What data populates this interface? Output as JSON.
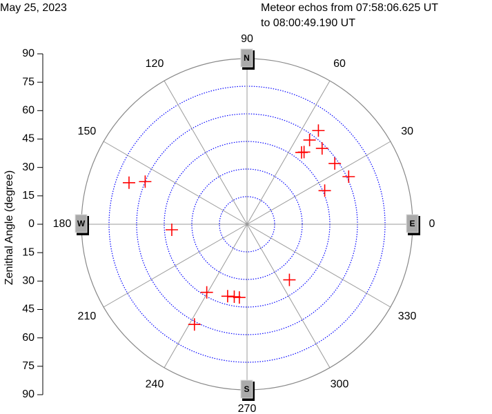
{
  "chart_data": {
    "type": "polar-scatter",
    "date": "May 25, 2023",
    "title": "Meteor echos from 07:58:06.625 UT",
    "subtitle": "to 08:00:49.190 UT",
    "ylabel": "Zenithal Angle (degree)",
    "ylim": [
      -90,
      90
    ],
    "yticks": [
      90,
      75,
      60,
      45,
      30,
      15,
      0,
      {
        "value": -15,
        "label": "15"
      },
      {
        "value": -30,
        "label": "30"
      },
      {
        "value": -45,
        "label": "45"
      },
      {
        "value": -60,
        "label": "60"
      },
      {
        "value": -75,
        "label": "75"
      },
      {
        "value": -90,
        "label": "90"
      }
    ],
    "rlim": [
      0,
      90
    ],
    "rticks": [
      15,
      30,
      45,
      60,
      75
    ],
    "thetaticks": [
      0,
      30,
      60,
      90,
      120,
      150,
      180,
      210,
      240,
      270,
      300,
      330
    ],
    "compass_labels": [
      "E",
      "N",
      "W",
      "S"
    ],
    "color": "#ff0000",
    "grid_color": "#0000ff",
    "x": [
      52.7,
      53.4,
      45.3,
      51.7,
      52.8,
      34.7,
      25.1,
      23.4,
      160.6,
      157.3,
      184.2,
      239.4,
      254.9,
      260,
      264,
      242.3,
      307.3
    ],
    "values": [
      64,
      57,
      58,
      50,
      49,
      58,
      61,
      46,
      68,
      60,
      41,
      43,
      40.5,
      40,
      40,
      61.5,
      38
    ]
  }
}
